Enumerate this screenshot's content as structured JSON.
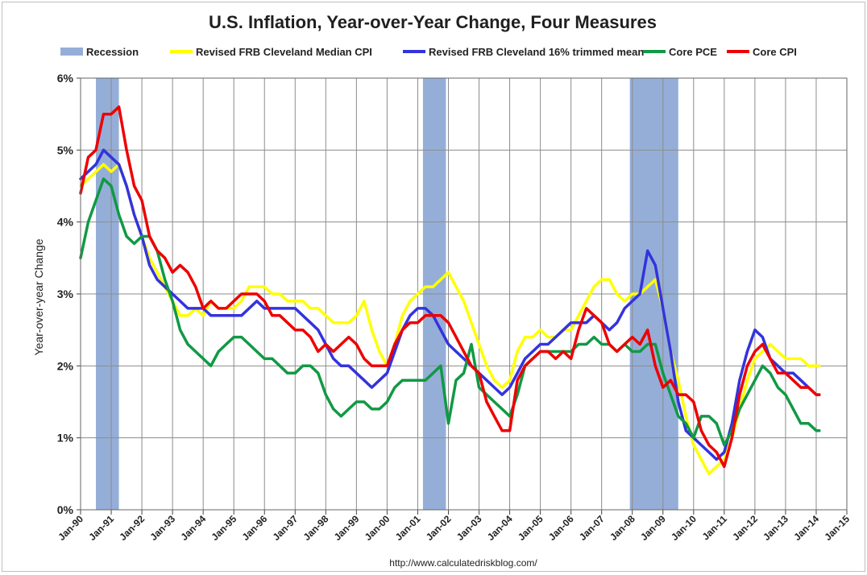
{
  "chart_data": {
    "type": "line",
    "title": "U.S. Inflation, Year-over-Year Change, Four Measures",
    "ylabel": "Year-over-year Change",
    "xlabel": "",
    "source": "http://www.calculatedriskblog.com/",
    "ylim": [
      0,
      6
    ],
    "xlim": [
      1990.0,
      2015.0
    ],
    "y_ticks": [
      "0%",
      "1%",
      "2%",
      "3%",
      "4%",
      "5%",
      "6%"
    ],
    "x_ticks": [
      "Jan-90",
      "Jan-91",
      "Jan-92",
      "Jan-93",
      "Jan-94",
      "Jan-95",
      "Jan-96",
      "Jan-97",
      "Jan-98",
      "Jan-99",
      "Jan-00",
      "Jan-01",
      "Jan-02",
      "Jan-03",
      "Jan-04",
      "Jan-05",
      "Jan-06",
      "Jan-07",
      "Jan-08",
      "Jan-09",
      "Jan-10",
      "Jan-11",
      "Jan-12",
      "Jan-13",
      "Jan-14",
      "Jan-15"
    ],
    "grid": "on",
    "legend_position": "top",
    "recession": {
      "name": "Recession",
      "color": "#95aed8",
      "periods": [
        [
          1990.5,
          1991.25
        ],
        [
          2001.17,
          2001.92
        ],
        [
          2007.92,
          2009.5
        ]
      ]
    },
    "series": [
      {
        "name": "Revised FRB Cleveland Median CPI",
        "color": "#ffff00",
        "x": [
          1990.0,
          1990.25,
          1990.5,
          1990.75,
          1991.0,
          1991.25,
          1991.5,
          1991.75,
          1992.0,
          1992.25,
          1992.5,
          1992.75,
          1993.0,
          1993.25,
          1993.5,
          1993.75,
          1994.0,
          1994.25,
          1994.5,
          1994.75,
          1995.0,
          1995.25,
          1995.5,
          1995.75,
          1996.0,
          1996.25,
          1996.5,
          1996.75,
          1997.0,
          1997.25,
          1997.5,
          1997.75,
          1998.0,
          1998.25,
          1998.5,
          1998.75,
          1999.0,
          1999.25,
          1999.5,
          1999.75,
          2000.0,
          2000.25,
          2000.5,
          2000.75,
          2001.0,
          2001.25,
          2001.5,
          2001.75,
          2002.0,
          2002.25,
          2002.5,
          2002.75,
          2003.0,
          2003.25,
          2003.5,
          2003.75,
          2004.0,
          2004.25,
          2004.5,
          2004.75,
          2005.0,
          2005.25,
          2005.5,
          2005.75,
          2006.0,
          2006.25,
          2006.5,
          2006.75,
          2007.0,
          2007.25,
          2007.5,
          2007.75,
          2008.0,
          2008.25,
          2008.5,
          2008.75,
          2009.0,
          2009.25,
          2009.5,
          2009.75,
          2010.0,
          2010.25,
          2010.5,
          2010.75,
          2011.0,
          2011.25,
          2011.5,
          2011.75,
          2012.0,
          2012.25,
          2012.5,
          2012.75,
          2013.0,
          2013.25,
          2013.5,
          2013.75,
          2014.0,
          2014.1
        ],
        "y": [
          4.5,
          4.6,
          4.7,
          4.8,
          4.7,
          4.8,
          4.5,
          4.1,
          3.8,
          3.5,
          3.3,
          3.1,
          2.9,
          2.7,
          2.7,
          2.8,
          2.7,
          2.9,
          2.8,
          2.8,
          2.8,
          2.9,
          3.1,
          3.1,
          3.1,
          3.0,
          3.0,
          2.9,
          2.9,
          2.9,
          2.8,
          2.8,
          2.7,
          2.6,
          2.6,
          2.6,
          2.7,
          2.9,
          2.5,
          2.2,
          2.0,
          2.3,
          2.7,
          2.9,
          3.0,
          3.1,
          3.1,
          3.2,
          3.3,
          3.1,
          2.9,
          2.6,
          2.3,
          2.0,
          1.8,
          1.7,
          1.8,
          2.2,
          2.4,
          2.4,
          2.5,
          2.4,
          2.4,
          2.5,
          2.5,
          2.7,
          2.9,
          3.1,
          3.2,
          3.2,
          3.0,
          2.9,
          3.0,
          3.0,
          3.1,
          3.2,
          2.8,
          2.2,
          1.8,
          1.3,
          0.9,
          0.7,
          0.5,
          0.6,
          0.7,
          1.0,
          1.4,
          1.8,
          2.1,
          2.2,
          2.3,
          2.2,
          2.1,
          2.1,
          2.1,
          2.0,
          2.0,
          2.0
        ]
      },
      {
        "name": "Revised FRB Cleveland 16% trimmed mean",
        "color": "#3333dd",
        "x": [
          1990.0,
          1990.25,
          1990.5,
          1990.75,
          1991.0,
          1991.25,
          1991.5,
          1991.75,
          1992.0,
          1992.25,
          1992.5,
          1992.75,
          1993.0,
          1993.25,
          1993.5,
          1993.75,
          1994.0,
          1994.25,
          1994.5,
          1994.75,
          1995.0,
          1995.25,
          1995.5,
          1995.75,
          1996.0,
          1996.25,
          1996.5,
          1996.75,
          1997.0,
          1997.25,
          1997.5,
          1997.75,
          1998.0,
          1998.25,
          1998.5,
          1998.75,
          1999.0,
          1999.25,
          1999.5,
          1999.75,
          2000.0,
          2000.25,
          2000.5,
          2000.75,
          2001.0,
          2001.25,
          2001.5,
          2001.75,
          2002.0,
          2002.25,
          2002.5,
          2002.75,
          2003.0,
          2003.25,
          2003.5,
          2003.75,
          2004.0,
          2004.25,
          2004.5,
          2004.75,
          2005.0,
          2005.25,
          2005.5,
          2005.75,
          2006.0,
          2006.25,
          2006.5,
          2006.75,
          2007.0,
          2007.25,
          2007.5,
          2007.75,
          2008.0,
          2008.25,
          2008.5,
          2008.75,
          2009.0,
          2009.25,
          2009.5,
          2009.75,
          2010.0,
          2010.25,
          2010.5,
          2010.75,
          2011.0,
          2011.25,
          2011.5,
          2011.75,
          2012.0,
          2012.25,
          2012.5,
          2012.75,
          2013.0,
          2013.25,
          2013.5,
          2013.75,
          2014.0,
          2014.1
        ],
        "y": [
          4.6,
          4.7,
          4.8,
          5.0,
          4.9,
          4.8,
          4.5,
          4.1,
          3.8,
          3.4,
          3.2,
          3.1,
          3.0,
          2.9,
          2.8,
          2.8,
          2.8,
          2.7,
          2.7,
          2.7,
          2.7,
          2.7,
          2.8,
          2.9,
          2.8,
          2.8,
          2.8,
          2.8,
          2.8,
          2.7,
          2.6,
          2.5,
          2.3,
          2.1,
          2.0,
          2.0,
          1.9,
          1.8,
          1.7,
          1.8,
          1.9,
          2.2,
          2.5,
          2.7,
          2.8,
          2.8,
          2.7,
          2.5,
          2.3,
          2.2,
          2.1,
          2.0,
          1.9,
          1.8,
          1.7,
          1.6,
          1.7,
          1.9,
          2.1,
          2.2,
          2.3,
          2.3,
          2.4,
          2.5,
          2.6,
          2.6,
          2.6,
          2.7,
          2.6,
          2.5,
          2.6,
          2.8,
          2.9,
          3.0,
          3.6,
          3.4,
          2.8,
          2.2,
          1.5,
          1.1,
          1.0,
          0.9,
          0.8,
          0.7,
          0.8,
          1.2,
          1.8,
          2.2,
          2.5,
          2.4,
          2.1,
          2.0,
          1.9,
          1.9,
          1.8,
          1.7,
          1.6,
          1.6
        ]
      },
      {
        "name": "Core PCE",
        "color": "#119944",
        "x": [
          1990.0,
          1990.25,
          1990.5,
          1990.75,
          1991.0,
          1991.25,
          1991.5,
          1991.75,
          1992.0,
          1992.25,
          1992.5,
          1992.75,
          1993.0,
          1993.25,
          1993.5,
          1993.75,
          1994.0,
          1994.25,
          1994.5,
          1994.75,
          1995.0,
          1995.25,
          1995.5,
          1995.75,
          1996.0,
          1996.25,
          1996.5,
          1996.75,
          1997.0,
          1997.25,
          1997.5,
          1997.75,
          1998.0,
          1998.25,
          1998.5,
          1998.75,
          1999.0,
          1999.25,
          1999.5,
          1999.75,
          2000.0,
          2000.25,
          2000.5,
          2000.75,
          2001.0,
          2001.25,
          2001.5,
          2001.75,
          2002.0,
          2002.25,
          2002.5,
          2002.75,
          2003.0,
          2003.25,
          2003.5,
          2003.75,
          2004.0,
          2004.25,
          2004.5,
          2004.75,
          2005.0,
          2005.25,
          2005.5,
          2005.75,
          2006.0,
          2006.25,
          2006.5,
          2006.75,
          2007.0,
          2007.25,
          2007.5,
          2007.75,
          2008.0,
          2008.25,
          2008.5,
          2008.75,
          2009.0,
          2009.25,
          2009.5,
          2009.75,
          2010.0,
          2010.25,
          2010.5,
          2010.75,
          2011.0,
          2011.25,
          2011.5,
          2011.75,
          2012.0,
          2012.25,
          2012.5,
          2012.75,
          2013.0,
          2013.25,
          2013.5,
          2013.75,
          2014.0,
          2014.1
        ],
        "y": [
          3.5,
          4.0,
          4.3,
          4.6,
          4.5,
          4.1,
          3.8,
          3.7,
          3.8,
          3.8,
          3.6,
          3.2,
          2.9,
          2.5,
          2.3,
          2.2,
          2.1,
          2.0,
          2.2,
          2.3,
          2.4,
          2.4,
          2.3,
          2.2,
          2.1,
          2.1,
          2.0,
          1.9,
          1.9,
          2.0,
          2.0,
          1.9,
          1.6,
          1.4,
          1.3,
          1.4,
          1.5,
          1.5,
          1.4,
          1.4,
          1.5,
          1.7,
          1.8,
          1.8,
          1.8,
          1.8,
          1.9,
          2.0,
          1.2,
          1.8,
          1.9,
          2.3,
          1.7,
          1.6,
          1.5,
          1.4,
          1.3,
          1.6,
          2.0,
          2.1,
          2.2,
          2.2,
          2.2,
          2.2,
          2.2,
          2.3,
          2.3,
          2.4,
          2.3,
          2.3,
          2.2,
          2.3,
          2.2,
          2.2,
          2.3,
          2.3,
          1.9,
          1.6,
          1.3,
          1.2,
          1.0,
          1.3,
          1.3,
          1.2,
          0.9,
          1.1,
          1.4,
          1.6,
          1.8,
          2.0,
          1.9,
          1.7,
          1.6,
          1.4,
          1.2,
          1.2,
          1.1,
          1.1
        ]
      },
      {
        "name": "Core CPI",
        "color": "#ee0000",
        "x": [
          1990.0,
          1990.25,
          1990.5,
          1990.75,
          1991.0,
          1991.25,
          1991.5,
          1991.75,
          1992.0,
          1992.25,
          1992.5,
          1992.75,
          1993.0,
          1993.25,
          1993.5,
          1993.75,
          1994.0,
          1994.25,
          1994.5,
          1994.75,
          1995.0,
          1995.25,
          1995.5,
          1995.75,
          1996.0,
          1996.25,
          1996.5,
          1996.75,
          1997.0,
          1997.25,
          1997.5,
          1997.75,
          1998.0,
          1998.25,
          1998.5,
          1998.75,
          1999.0,
          1999.25,
          1999.5,
          1999.75,
          2000.0,
          2000.25,
          2000.5,
          2000.75,
          2001.0,
          2001.25,
          2001.5,
          2001.75,
          2002.0,
          2002.25,
          2002.5,
          2002.75,
          2003.0,
          2003.25,
          2003.5,
          2003.75,
          2004.0,
          2004.25,
          2004.5,
          2004.75,
          2005.0,
          2005.25,
          2005.5,
          2005.75,
          2006.0,
          2006.25,
          2006.5,
          2006.75,
          2007.0,
          2007.25,
          2007.5,
          2007.75,
          2008.0,
          2008.25,
          2008.5,
          2008.75,
          2009.0,
          2009.25,
          2009.5,
          2009.75,
          2010.0,
          2010.25,
          2010.5,
          2010.75,
          2011.0,
          2011.25,
          2011.5,
          2011.75,
          2012.0,
          2012.25,
          2012.5,
          2012.75,
          2013.0,
          2013.25,
          2013.5,
          2013.75,
          2014.0,
          2014.1
        ],
        "y": [
          4.4,
          4.9,
          5.0,
          5.5,
          5.5,
          5.6,
          5.0,
          4.5,
          4.3,
          3.8,
          3.6,
          3.5,
          3.3,
          3.4,
          3.3,
          3.1,
          2.8,
          2.9,
          2.8,
          2.8,
          2.9,
          3.0,
          3.0,
          3.0,
          2.9,
          2.7,
          2.7,
          2.6,
          2.5,
          2.5,
          2.4,
          2.2,
          2.3,
          2.2,
          2.3,
          2.4,
          2.3,
          2.1,
          2.0,
          2.0,
          2.0,
          2.3,
          2.5,
          2.6,
          2.6,
          2.7,
          2.7,
          2.7,
          2.6,
          2.4,
          2.2,
          2.0,
          1.9,
          1.5,
          1.3,
          1.1,
          1.1,
          1.8,
          2.0,
          2.1,
          2.2,
          2.2,
          2.1,
          2.2,
          2.1,
          2.5,
          2.8,
          2.7,
          2.6,
          2.3,
          2.2,
          2.3,
          2.4,
          2.3,
          2.5,
          2.0,
          1.7,
          1.8,
          1.6,
          1.6,
          1.5,
          1.1,
          0.9,
          0.8,
          0.6,
          1.0,
          1.6,
          2.0,
          2.2,
          2.3,
          2.1,
          1.9,
          1.9,
          1.8,
          1.7,
          1.7,
          1.6,
          1.6
        ]
      }
    ]
  }
}
